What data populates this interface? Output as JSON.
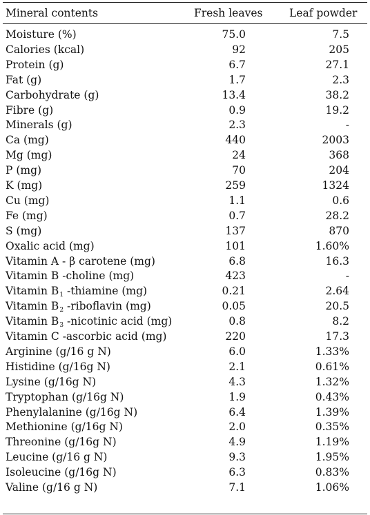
{
  "headers": {
    "col1": "Mineral contents",
    "col2": "Fresh leaves",
    "col3": "Leaf powder"
  },
  "rows": [
    {
      "label": "Moisture (%)",
      "fresh": "75.0",
      "powder": "7.5"
    },
    {
      "label": "Calories (kcal)",
      "fresh": "92",
      "powder": "205"
    },
    {
      "label": "Protein (g)",
      "fresh": "6.7",
      "powder": "27.1"
    },
    {
      "label": "Fat (g)",
      "fresh": "1.7",
      "powder": "2.3"
    },
    {
      "label": "Carbohydrate (g)",
      "fresh": "13.4",
      "powder": "38.2"
    },
    {
      "label": "Fibre (g)",
      "fresh": "0.9",
      "powder": "19.2"
    },
    {
      "label": "Minerals (g)",
      "fresh": "2.3",
      "powder": "-"
    },
    {
      "label": "Ca (mg)",
      "fresh": "440",
      "powder": "2003"
    },
    {
      "label": "Mg (mg)",
      "fresh": "24",
      "powder": "368"
    },
    {
      "label": "P (mg)",
      "fresh": "70",
      "powder": "204"
    },
    {
      "label": "K (mg)",
      "fresh": "259",
      "powder": "1324"
    },
    {
      "label": "Cu (mg)",
      "fresh": "1.1",
      "powder": "0.6"
    },
    {
      "label": "Fe (mg)",
      "fresh": "0.7",
      "powder": "28.2"
    },
    {
      "label": "S (mg)",
      "fresh": "137",
      "powder": "870"
    },
    {
      "label": "Oxalic acid (mg)",
      "fresh": "101",
      "powder": "1.60%"
    },
    {
      "label": "Vitamin A - β carotene (mg)",
      "fresh": "6.8",
      "powder": "16.3"
    },
    {
      "label": "Vitamin B -choline (mg)",
      "fresh": "423",
      "powder": "-"
    },
    {
      "label_pre": "Vitamin B",
      "label_sub": "1",
      "label_post": " -thiamine (mg)",
      "fresh": "0.21",
      "powder": "2.64"
    },
    {
      "label_pre": "Vitamin B",
      "label_sub": "2",
      "label_post": " -riboflavin (mg)",
      "fresh": "0.05",
      "powder": "20.5"
    },
    {
      "label_pre": "Vitamin B",
      "label_sub": "3",
      "label_post": " -nicotinic acid (mg)",
      "fresh": "0.8",
      "powder": "8.2"
    },
    {
      "label": "Vitamin C -ascorbic acid (mg)",
      "fresh": "220",
      "powder": "17.3"
    },
    {
      "label": "Arginine (g/16 g N)",
      "fresh": "6.0",
      "powder": "1.33%"
    },
    {
      "label": "Histidine (g/16g N)",
      "fresh": "2.1",
      "powder": "0.61%"
    },
    {
      "label": "Lysine (g/16g N)",
      "fresh": "4.3",
      "powder": "1.32%"
    },
    {
      "label": "Tryptophan (g/16g N)",
      "fresh": "1.9",
      "powder": "0.43%"
    },
    {
      "label": "Phenylalanine (g/16g N)",
      "fresh": "6.4",
      "powder": "1.39%"
    },
    {
      "label": "Methionine (g/16g N)",
      "fresh": "2.0",
      "powder": "0.35%"
    },
    {
      "label": "Threonine (g/16g N)",
      "fresh": "4.9",
      "powder": "1.19%"
    },
    {
      "label": "Leucine (g/16 g N)",
      "fresh": "9.3",
      "powder": "1.95%"
    },
    {
      "label": "Isoleucine (g/16g N)",
      "fresh": "6.3",
      "powder": "0.83%"
    },
    {
      "label": "Valine (g/16 g N)",
      "fresh": "7.1",
      "powder": "1.06%"
    }
  ]
}
